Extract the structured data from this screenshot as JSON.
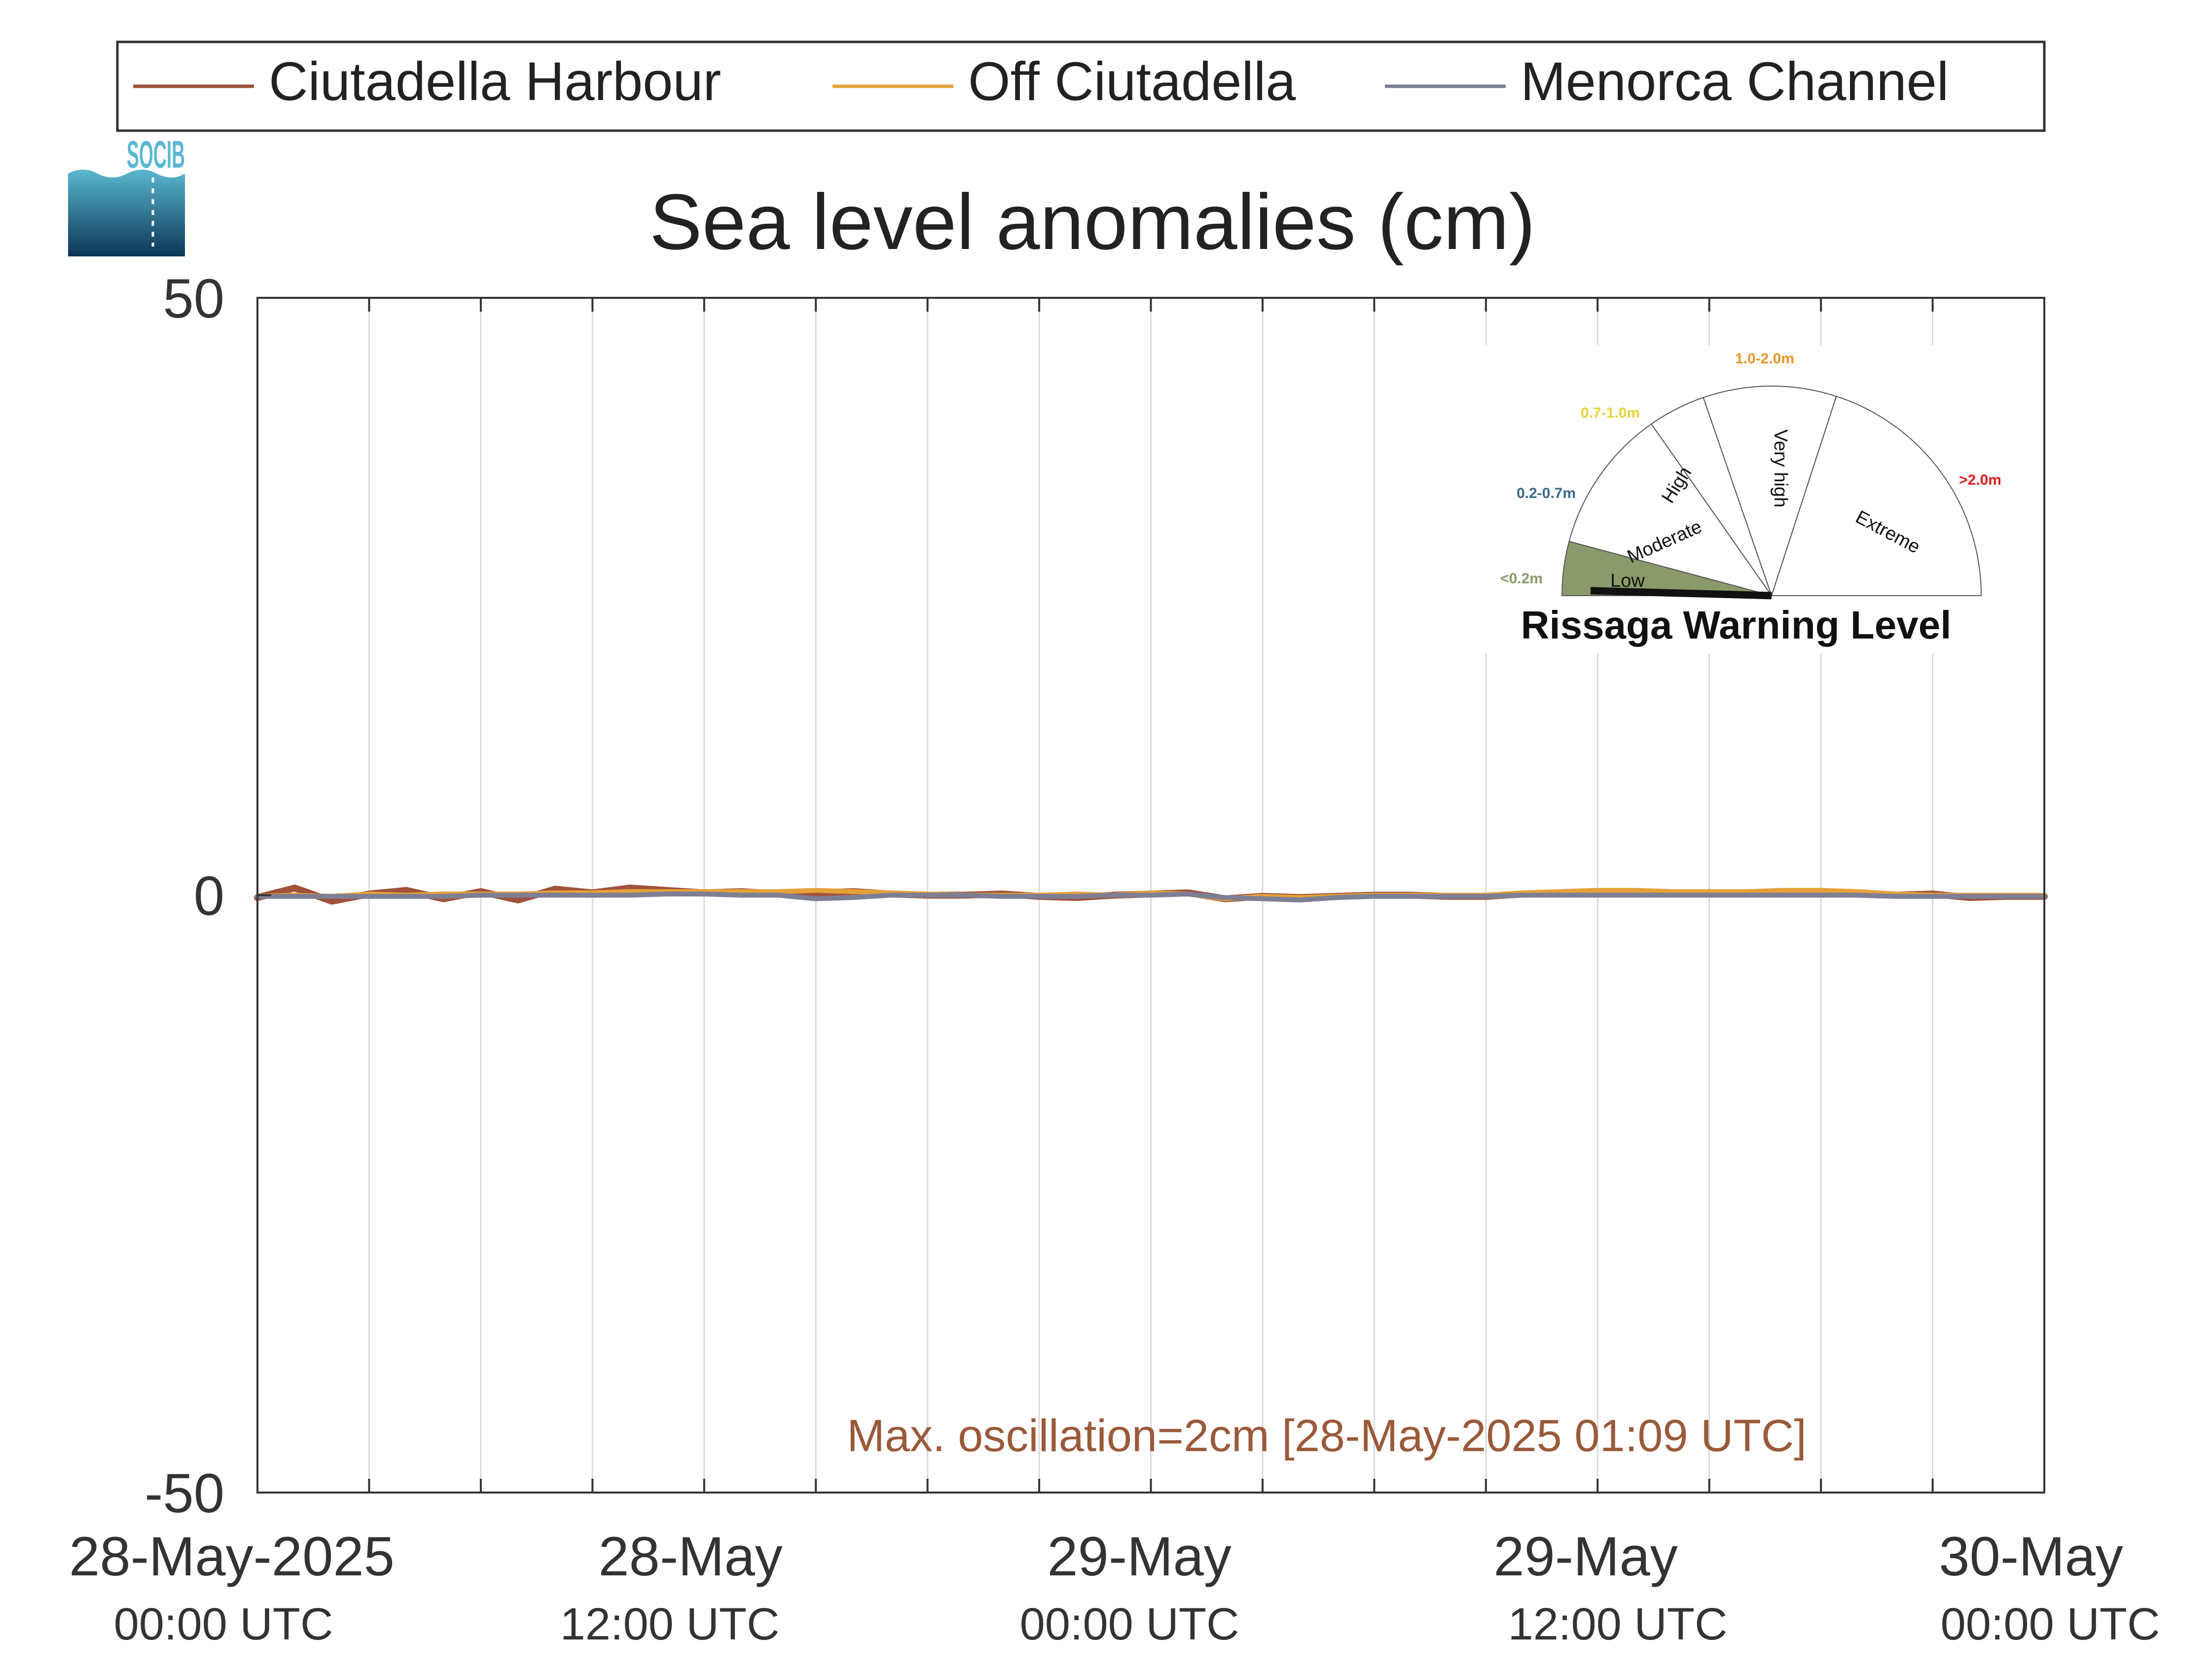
{
  "logo": {
    "text": "SOCIB"
  },
  "legend": {
    "entries": [
      {
        "label": "Ciutadella Harbour",
        "color": "#a0523a"
      },
      {
        "label": "Off Ciutadella",
        "color": "#e5a13a"
      },
      {
        "label": "Menorca Channel",
        "color": "#7d7f94"
      }
    ]
  },
  "chart_data": {
    "type": "line",
    "title": "Sea level anomalies (cm)",
    "xlabel": "",
    "ylabel": "",
    "ylim": [
      -50,
      50
    ],
    "xlim_hours": [
      0,
      48
    ],
    "y_ticks": [
      -50,
      0,
      50
    ],
    "grid": "vertical",
    "x_ticks": [
      {
        "hours": 0,
        "date": "28-May-2025",
        "time": "00:00 UTC"
      },
      {
        "hours": 12,
        "date": "28-May",
        "time": "12:00 UTC"
      },
      {
        "hours": 24,
        "date": "29-May",
        "time": "00:00 UTC"
      },
      {
        "hours": 36,
        "date": "29-May",
        "time": "12:00 UTC"
      },
      {
        "hours": 48,
        "date": "30-May",
        "time": "00:00 UTC"
      }
    ],
    "x_minor_grid_hours": [
      3,
      6,
      9,
      15,
      18,
      21,
      27,
      30,
      33,
      39,
      42,
      45
    ],
    "series": [
      {
        "name": "Ciutadella Harbour",
        "color": "#a0523a",
        "x_hours": [
          0,
          1,
          2,
          3,
          4,
          5,
          6,
          7,
          8,
          9,
          10,
          11,
          12,
          13,
          14,
          15,
          16,
          17,
          18,
          19,
          20,
          21,
          22,
          23,
          24,
          25,
          26,
          27,
          28,
          29,
          30,
          31,
          32,
          33,
          34,
          35,
          36,
          37,
          38,
          39,
          40,
          41,
          42,
          43,
          44,
          45,
          46,
          47,
          48
        ],
        "values": [
          -0.2,
          0.6,
          -0.5,
          0.1,
          0.4,
          -0.3,
          0.3,
          -0.4,
          0.5,
          0.2,
          0.6,
          0.4,
          0.2,
          0.3,
          0.1,
          0.2,
          0.3,
          0.1,
          0.0,
          0.0,
          0.1,
          -0.1,
          -0.2,
          0.0,
          0.1,
          0.2,
          -0.3,
          -0.1,
          -0.2,
          -0.1,
          0.0,
          0.0,
          -0.1,
          -0.1,
          0.1,
          0.2,
          0.3,
          0.1,
          0.1,
          0.2,
          0.1,
          0.2,
          0.3,
          0.1,
          0.0,
          0.1,
          -0.2,
          -0.1,
          -0.1
        ]
      },
      {
        "name": "Off Ciutadella",
        "color": "#e5a13a",
        "x_hours": [
          0,
          1,
          2,
          3,
          4,
          5,
          6,
          7,
          8,
          9,
          10,
          11,
          12,
          13,
          14,
          15,
          16,
          17,
          18,
          19,
          20,
          21,
          22,
          23,
          24,
          25,
          26,
          27,
          28,
          29,
          30,
          31,
          32,
          33,
          34,
          35,
          36,
          37,
          38,
          39,
          40,
          41,
          42,
          43,
          44,
          45,
          46,
          47,
          48
        ],
        "values": [
          -0.1,
          0.0,
          -0.1,
          0.1,
          0.0,
          0.1,
          0.1,
          0.1,
          0.2,
          0.2,
          0.3,
          0.3,
          0.3,
          0.3,
          0.3,
          0.4,
          0.3,
          0.2,
          0.1,
          0.0,
          0.0,
          0.0,
          0.1,
          0.0,
          0.2,
          0.1,
          -0.3,
          -0.1,
          -0.2,
          -0.1,
          0.0,
          0.0,
          0.0,
          0.0,
          0.2,
          0.3,
          0.4,
          0.4,
          0.3,
          0.3,
          0.3,
          0.4,
          0.4,
          0.3,
          0.1,
          0.0,
          0.0,
          0.0,
          0.0
        ]
      },
      {
        "name": "Menorca Channel",
        "color": "#7d7f94",
        "x_hours": [
          0,
          1,
          2,
          3,
          4,
          5,
          6,
          7,
          8,
          9,
          10,
          11,
          12,
          13,
          14,
          15,
          16,
          17,
          18,
          19,
          20,
          21,
          22,
          23,
          24,
          25,
          26,
          27,
          28,
          29,
          30,
          31,
          32,
          33,
          34,
          35,
          36,
          37,
          38,
          39,
          40,
          41,
          42,
          43,
          44,
          45,
          46,
          47,
          48
        ],
        "values": [
          -0.1,
          -0.1,
          -0.1,
          -0.1,
          -0.1,
          -0.1,
          0.0,
          0.0,
          0.0,
          0.0,
          0.0,
          0.1,
          0.1,
          0.0,
          0.0,
          -0.3,
          -0.2,
          0.0,
          0.0,
          0.0,
          -0.1,
          -0.1,
          -0.1,
          0.0,
          0.0,
          0.1,
          -0.2,
          -0.3,
          -0.4,
          -0.2,
          -0.1,
          -0.1,
          -0.1,
          -0.1,
          0.0,
          0.0,
          0.0,
          0.0,
          0.0,
          0.0,
          0.0,
          0.0,
          0.0,
          0.0,
          -0.1,
          -0.1,
          -0.1,
          -0.1,
          -0.1
        ]
      }
    ],
    "annotation": "Max. oscillation=2cm [28-May-2025 01:09 UTC]"
  },
  "warning_gauge": {
    "title": "Rissaga Warning Level",
    "current_level": "Low",
    "sectors": [
      {
        "label": "Low",
        "range": "<0.2m",
        "color": "#8a9a6a",
        "fill": "#8a9a6a"
      },
      {
        "label": "Moderate",
        "range": "0.2-0.7m",
        "color": "#3a6a88",
        "fill": "#ffffff"
      },
      {
        "label": "High",
        "range": "0.7-1.0m",
        "color": "#e8d23a",
        "fill": "#ffffff"
      },
      {
        "label": "Very high",
        "range": "1.0-2.0m",
        "color": "#e8962a",
        "fill": "#ffffff"
      },
      {
        "label": "Extreme",
        "range": ">2.0m",
        "color": "#d62020",
        "fill": "#ffffff"
      }
    ]
  }
}
